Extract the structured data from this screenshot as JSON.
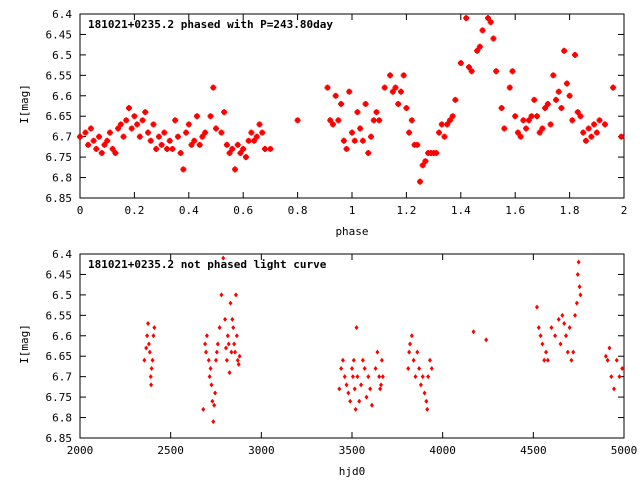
{
  "chart_data": [
    {
      "type": "scatter",
      "title": "181021+0235.2 phased with P=243.80day",
      "xlabel": "phase",
      "ylabel": "I[mag]",
      "xlim": [
        0,
        2
      ],
      "ylim": [
        6.85,
        6.4
      ],
      "y_inverted": true,
      "marker": "star",
      "color": "#ff0000",
      "x_ticks": [
        "0",
        "0.2",
        "0.4",
        "0.6",
        "0.8",
        "1",
        "1.2",
        "1.4",
        "1.6",
        "1.8",
        "2"
      ],
      "x_tick_values": [
        0,
        0.2,
        0.4,
        0.6,
        0.8,
        1.0,
        1.2,
        1.4,
        1.6,
        1.8,
        2.0
      ],
      "y_ticks": [
        "6.4",
        "6.45",
        "6.5",
        "6.55",
        "6.6",
        "6.65",
        "6.7",
        "6.75",
        "6.8",
        "6.85"
      ],
      "y_tick_values": [
        6.4,
        6.45,
        6.5,
        6.55,
        6.6,
        6.65,
        6.7,
        6.75,
        6.8,
        6.85
      ],
      "points": [
        [
          0.0,
          6.7
        ],
        [
          0.02,
          6.69
        ],
        [
          0.03,
          6.72
        ],
        [
          0.04,
          6.68
        ],
        [
          0.05,
          6.71
        ],
        [
          0.06,
          6.73
        ],
        [
          0.07,
          6.7
        ],
        [
          0.08,
          6.74
        ],
        [
          0.09,
          6.72
        ],
        [
          0.1,
          6.71
        ],
        [
          0.11,
          6.69
        ],
        [
          0.12,
          6.73
        ],
        [
          0.13,
          6.74
        ],
        [
          0.14,
          6.68
        ],
        [
          0.15,
          6.67
        ],
        [
          0.16,
          6.7
        ],
        [
          0.17,
          6.66
        ],
        [
          0.18,
          6.63
        ],
        [
          0.19,
          6.68
        ],
        [
          0.2,
          6.65
        ],
        [
          0.21,
          6.67
        ],
        [
          0.22,
          6.7
        ],
        [
          0.23,
          6.66
        ],
        [
          0.24,
          6.64
        ],
        [
          0.25,
          6.69
        ],
        [
          0.26,
          6.71
        ],
        [
          0.27,
          6.67
        ],
        [
          0.28,
          6.73
        ],
        [
          0.29,
          6.7
        ],
        [
          0.3,
          6.72
        ],
        [
          0.31,
          6.69
        ],
        [
          0.32,
          6.73
        ],
        [
          0.33,
          6.71
        ],
        [
          0.34,
          6.73
        ],
        [
          0.35,
          6.66
        ],
        [
          0.36,
          6.7
        ],
        [
          0.37,
          6.74
        ],
        [
          0.38,
          6.78
        ],
        [
          0.39,
          6.69
        ],
        [
          0.4,
          6.67
        ],
        [
          0.41,
          6.72
        ],
        [
          0.42,
          6.71
        ],
        [
          0.43,
          6.65
        ],
        [
          0.44,
          6.72
        ],
        [
          0.45,
          6.7
        ],
        [
          0.46,
          6.69
        ],
        [
          0.48,
          6.65
        ],
        [
          0.49,
          6.58
        ],
        [
          0.5,
          6.68
        ],
        [
          0.52,
          6.69
        ],
        [
          0.53,
          6.64
        ],
        [
          0.54,
          6.72
        ],
        [
          0.55,
          6.74
        ],
        [
          0.56,
          6.73
        ],
        [
          0.57,
          6.78
        ],
        [
          0.58,
          6.72
        ],
        [
          0.59,
          6.74
        ],
        [
          0.6,
          6.73
        ],
        [
          0.61,
          6.75
        ],
        [
          0.62,
          6.71
        ],
        [
          0.63,
          6.69
        ],
        [
          0.64,
          6.71
        ],
        [
          0.65,
          6.7
        ],
        [
          0.66,
          6.67
        ],
        [
          0.67,
          6.69
        ],
        [
          0.68,
          6.73
        ],
        [
          0.7,
          6.73
        ],
        [
          0.8,
          6.66
        ],
        [
          0.91,
          6.58
        ],
        [
          0.92,
          6.66
        ],
        [
          0.93,
          6.67
        ],
        [
          0.94,
          6.6
        ],
        [
          0.95,
          6.66
        ],
        [
          0.96,
          6.62
        ],
        [
          0.97,
          6.71
        ],
        [
          0.98,
          6.73
        ],
        [
          0.99,
          6.59
        ],
        [
          1.0,
          6.69
        ],
        [
          1.01,
          6.71
        ],
        [
          1.02,
          6.64
        ],
        [
          1.03,
          6.68
        ],
        [
          1.04,
          6.71
        ],
        [
          1.05,
          6.62
        ],
        [
          1.06,
          6.74
        ],
        [
          1.07,
          6.7
        ],
        [
          1.08,
          6.66
        ],
        [
          1.09,
          6.64
        ],
        [
          1.1,
          6.66
        ],
        [
          1.12,
          6.58
        ],
        [
          1.14,
          6.55
        ],
        [
          1.15,
          6.59
        ],
        [
          1.16,
          6.58
        ],
        [
          1.17,
          6.62
        ],
        [
          1.18,
          6.59
        ],
        [
          1.19,
          6.55
        ],
        [
          1.2,
          6.63
        ],
        [
          1.21,
          6.69
        ],
        [
          1.22,
          6.66
        ],
        [
          1.23,
          6.72
        ],
        [
          1.24,
          6.72
        ],
        [
          1.25,
          6.81
        ],
        [
          1.26,
          6.77
        ],
        [
          1.27,
          6.76
        ],
        [
          1.28,
          6.74
        ],
        [
          1.29,
          6.74
        ],
        [
          1.3,
          6.74
        ],
        [
          1.31,
          6.74
        ],
        [
          1.32,
          6.69
        ],
        [
          1.33,
          6.67
        ],
        [
          1.34,
          6.7
        ],
        [
          1.35,
          6.67
        ],
        [
          1.36,
          6.66
        ],
        [
          1.37,
          6.65
        ],
        [
          1.38,
          6.61
        ],
        [
          1.4,
          6.52
        ],
        [
          1.42,
          6.41
        ],
        [
          1.43,
          6.53
        ],
        [
          1.44,
          6.54
        ],
        [
          1.46,
          6.49
        ],
        [
          1.47,
          6.48
        ],
        [
          1.48,
          6.44
        ],
        [
          1.5,
          6.41
        ],
        [
          1.51,
          6.42
        ],
        [
          1.52,
          6.46
        ],
        [
          1.53,
          6.54
        ],
        [
          1.55,
          6.63
        ],
        [
          1.56,
          6.68
        ],
        [
          1.58,
          6.58
        ],
        [
          1.59,
          6.54
        ],
        [
          1.6,
          6.65
        ],
        [
          1.61,
          6.69
        ],
        [
          1.62,
          6.7
        ],
        [
          1.63,
          6.66
        ],
        [
          1.64,
          6.68
        ],
        [
          1.65,
          6.66
        ],
        [
          1.66,
          6.65
        ],
        [
          1.67,
          6.61
        ],
        [
          1.68,
          6.65
        ],
        [
          1.69,
          6.69
        ],
        [
          1.7,
          6.68
        ],
        [
          1.71,
          6.63
        ],
        [
          1.72,
          6.62
        ],
        [
          1.73,
          6.67
        ],
        [
          1.74,
          6.55
        ],
        [
          1.75,
          6.61
        ],
        [
          1.76,
          6.59
        ],
        [
          1.77,
          6.63
        ],
        [
          1.78,
          6.49
        ],
        [
          1.79,
          6.57
        ],
        [
          1.8,
          6.6
        ],
        [
          1.81,
          6.66
        ],
        [
          1.82,
          6.5
        ],
        [
          1.83,
          6.64
        ],
        [
          1.84,
          6.65
        ],
        [
          1.85,
          6.69
        ],
        [
          1.86,
          6.71
        ],
        [
          1.87,
          6.68
        ],
        [
          1.88,
          6.7
        ],
        [
          1.89,
          6.67
        ],
        [
          1.9,
          6.69
        ],
        [
          1.91,
          6.66
        ],
        [
          1.93,
          6.67
        ],
        [
          1.96,
          6.58
        ],
        [
          1.99,
          6.7
        ]
      ]
    },
    {
      "type": "scatter",
      "title": "181021+0235.2 not phased light curve",
      "xlabel": "hjd0",
      "ylabel": "I[mag]",
      "xlim": [
        2000,
        5000
      ],
      "ylim": [
        6.85,
        6.4
      ],
      "y_inverted": true,
      "marker": "diamond",
      "color": "#ff0000",
      "x_ticks": [
        "2000",
        "2500",
        "3000",
        "3500",
        "4000",
        "4500",
        "5000"
      ],
      "x_tick_values": [
        2000,
        2500,
        3000,
        3500,
        4000,
        4500,
        5000
      ],
      "y_ticks": [
        "6.4",
        "6.45",
        "6.5",
        "6.55",
        "6.6",
        "6.65",
        "6.7",
        "6.75",
        "6.8",
        "6.85"
      ],
      "y_tick_values": [
        6.4,
        6.45,
        6.5,
        6.55,
        6.6,
        6.65,
        6.7,
        6.75,
        6.8,
        6.85
      ],
      "points": [
        [
          2355,
          6.66
        ],
        [
          2365,
          6.63
        ],
        [
          2370,
          6.6
        ],
        [
          2375,
          6.57
        ],
        [
          2380,
          6.62
        ],
        [
          2385,
          6.64
        ],
        [
          2390,
          6.7
        ],
        [
          2392,
          6.72
        ],
        [
          2395,
          6.68
        ],
        [
          2400,
          6.66
        ],
        [
          2405,
          6.6
        ],
        [
          2410,
          6.58
        ],
        [
          2680,
          6.78
        ],
        [
          2690,
          6.62
        ],
        [
          2695,
          6.64
        ],
        [
          2700,
          6.6
        ],
        [
          2710,
          6.66
        ],
        [
          2715,
          6.7
        ],
        [
          2720,
          6.68
        ],
        [
          2725,
          6.72
        ],
        [
          2730,
          6.76
        ],
        [
          2735,
          6.81
        ],
        [
          2740,
          6.77
        ],
        [
          2745,
          6.74
        ],
        [
          2750,
          6.66
        ],
        [
          2755,
          6.64
        ],
        [
          2760,
          6.62
        ],
        [
          2770,
          6.58
        ],
        [
          2780,
          6.5
        ],
        [
          2790,
          6.41
        ],
        [
          2800,
          6.56
        ],
        [
          2805,
          6.63
        ],
        [
          2810,
          6.66
        ],
        [
          2815,
          6.6
        ],
        [
          2820,
          6.62
        ],
        [
          2825,
          6.69
        ],
        [
          2830,
          6.52
        ],
        [
          2835,
          6.64
        ],
        [
          2840,
          6.56
        ],
        [
          2845,
          6.58
        ],
        [
          2850,
          6.62
        ],
        [
          2855,
          6.64
        ],
        [
          2860,
          6.5
        ],
        [
          2865,
          6.6
        ],
        [
          2870,
          6.66
        ],
        [
          2875,
          6.67
        ],
        [
          2880,
          6.65
        ],
        [
          3430,
          6.73
        ],
        [
          3440,
          6.68
        ],
        [
          3450,
          6.66
        ],
        [
          3460,
          6.7
        ],
        [
          3470,
          6.72
        ],
        [
          3480,
          6.74
        ],
        [
          3490,
          6.76
        ],
        [
          3500,
          6.68
        ],
        [
          3505,
          6.7
        ],
        [
          3510,
          6.66
        ],
        [
          3515,
          6.73
        ],
        [
          3520,
          6.78
        ],
        [
          3525,
          6.58
        ],
        [
          3530,
          6.7
        ],
        [
          3540,
          6.76
        ],
        [
          3550,
          6.72
        ],
        [
          3560,
          6.66
        ],
        [
          3570,
          6.68
        ],
        [
          3580,
          6.75
        ],
        [
          3590,
          6.7
        ],
        [
          3600,
          6.73
        ],
        [
          3610,
          6.77
        ],
        [
          3630,
          6.68
        ],
        [
          3640,
          6.64
        ],
        [
          3650,
          6.7
        ],
        [
          3655,
          6.73
        ],
        [
          3660,
          6.72
        ],
        [
          3665,
          6.66
        ],
        [
          3670,
          6.7
        ],
        [
          3810,
          6.68
        ],
        [
          3815,
          6.64
        ],
        [
          3820,
          6.62
        ],
        [
          3830,
          6.6
        ],
        [
          3840,
          6.66
        ],
        [
          3850,
          6.7
        ],
        [
          3860,
          6.64
        ],
        [
          3870,
          6.68
        ],
        [
          3880,
          6.72
        ],
        [
          3890,
          6.7
        ],
        [
          3900,
          6.74
        ],
        [
          3910,
          6.76
        ],
        [
          3915,
          6.78
        ],
        [
          3920,
          6.7
        ],
        [
          3930,
          6.66
        ],
        [
          3940,
          6.68
        ],
        [
          4170,
          6.59
        ],
        [
          4240,
          6.61
        ],
        [
          4520,
          6.53
        ],
        [
          4530,
          6.58
        ],
        [
          4540,
          6.6
        ],
        [
          4550,
          6.62
        ],
        [
          4560,
          6.66
        ],
        [
          4570,
          6.64
        ],
        [
          4580,
          6.66
        ],
        [
          4600,
          6.58
        ],
        [
          4620,
          6.6
        ],
        [
          4640,
          6.56
        ],
        [
          4650,
          6.62
        ],
        [
          4660,
          6.55
        ],
        [
          4670,
          6.57
        ],
        [
          4680,
          6.6
        ],
        [
          4690,
          6.64
        ],
        [
          4700,
          6.58
        ],
        [
          4710,
          6.66
        ],
        [
          4720,
          6.64
        ],
        [
          4730,
          6.55
        ],
        [
          4740,
          6.52
        ],
        [
          4745,
          6.45
        ],
        [
          4750,
          6.42
        ],
        [
          4755,
          6.48
        ],
        [
          4760,
          6.5
        ],
        [
          4900,
          6.65
        ],
        [
          4910,
          6.66
        ],
        [
          4920,
          6.63
        ],
        [
          4930,
          6.7
        ],
        [
          4945,
          6.73
        ],
        [
          4960,
          6.66
        ],
        [
          4975,
          6.7
        ],
        [
          4990,
          6.68
        ]
      ]
    }
  ]
}
